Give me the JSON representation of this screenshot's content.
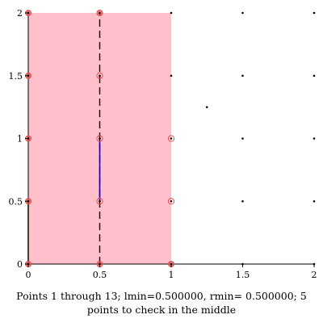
{
  "chart_data": {
    "type": "scatter",
    "caption": "Points 1 through 13; lmin=0.500000, rmin= 0.500000; 5 points to check in the middle",
    "xlim": [
      0,
      2
    ],
    "ylim": [
      0,
      2
    ],
    "x_ticks": [
      "0",
      "0.5",
      "1",
      "1.5",
      "2"
    ],
    "y_ticks": [
      "0",
      "0.5",
      "1",
      "1.5",
      "2"
    ],
    "shaded_region": {
      "x": [
        0,
        1
      ],
      "y": [
        0,
        2
      ],
      "color": "#ffc0cb"
    },
    "dashed_line": {
      "x": 0.5,
      "y": [
        0,
        2
      ],
      "color": "#000000"
    },
    "segments": [
      {
        "x": [
          0.5,
          0.5
        ],
        "y": [
          0.5,
          1
        ],
        "color": "#0000ff"
      },
      {
        "x": [
          0,
          0
        ],
        "y": [
          0,
          0.5
        ],
        "color": "#006400"
      }
    ],
    "grid_points": [
      {
        "x": 0,
        "y": 0
      },
      {
        "x": 0.5,
        "y": 0
      },
      {
        "x": 1,
        "y": 0
      },
      {
        "x": 1.5,
        "y": 0
      },
      {
        "x": 2,
        "y": 0
      },
      {
        "x": 0,
        "y": 0.5
      },
      {
        "x": 0.5,
        "y": 0.5
      },
      {
        "x": 1,
        "y": 0.5
      },
      {
        "x": 1.5,
        "y": 0.5
      },
      {
        "x": 2,
        "y": 0.5
      },
      {
        "x": 0,
        "y": 1
      },
      {
        "x": 0.5,
        "y": 1
      },
      {
        "x": 1,
        "y": 1
      },
      {
        "x": 1.5,
        "y": 1
      },
      {
        "x": 2,
        "y": 1
      },
      {
        "x": 1.25,
        "y": 1.25
      },
      {
        "x": 0,
        "y": 1.5
      },
      {
        "x": 0.5,
        "y": 1.5
      },
      {
        "x": 1,
        "y": 1.5
      },
      {
        "x": 1.5,
        "y": 1.5
      },
      {
        "x": 2,
        "y": 1.5
      },
      {
        "x": 0,
        "y": 2
      },
      {
        "x": 0.5,
        "y": 2
      },
      {
        "x": 1,
        "y": 2
      },
      {
        "x": 1.5,
        "y": 2
      },
      {
        "x": 2,
        "y": 2
      }
    ],
    "filled_circles": [
      {
        "x": 0,
        "y": 0
      },
      {
        "x": 0,
        "y": 0.5
      },
      {
        "x": 0,
        "y": 1
      },
      {
        "x": 0,
        "y": 1.5
      },
      {
        "x": 0,
        "y": 2
      },
      {
        "x": 0.5,
        "y": 0
      },
      {
        "x": 0.5,
        "y": 2
      },
      {
        "x": 1,
        "y": 0
      }
    ],
    "open_circles": [
      {
        "x": 0.5,
        "y": 0.5
      },
      {
        "x": 0.5,
        "y": 1
      },
      {
        "x": 0.5,
        "y": 1.5
      },
      {
        "x": 1,
        "y": 0.5
      },
      {
        "x": 1,
        "y": 1
      }
    ],
    "marker_color": "#e05050"
  }
}
